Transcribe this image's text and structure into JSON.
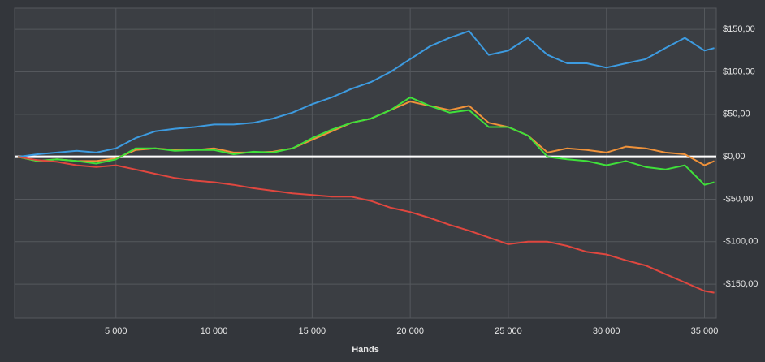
{
  "chart_data": {
    "type": "line",
    "x_label": "Hands",
    "x": [
      0,
      1000,
      2000,
      3000,
      4000,
      5000,
      6000,
      7000,
      8000,
      9000,
      10000,
      11000,
      12000,
      13000,
      14000,
      15000,
      16000,
      17000,
      18000,
      19000,
      20000,
      21000,
      22000,
      23000,
      24000,
      25000,
      26000,
      27000,
      28000,
      29000,
      30000,
      31000,
      32000,
      33000,
      34000,
      35000,
      35500
    ],
    "series": [
      {
        "color": "#3d9be0",
        "values": [
          0,
          3,
          5,
          7,
          5,
          10,
          22,
          30,
          33,
          35,
          38,
          38,
          40,
          45,
          52,
          62,
          70,
          80,
          88,
          100,
          115,
          130,
          140,
          148,
          120,
          125,
          140,
          120,
          110,
          110,
          105,
          110,
          115,
          128,
          140,
          125,
          128
        ]
      },
      {
        "color": "#f0923a",
        "values": [
          0,
          -5,
          -3,
          -5,
          -5,
          -2,
          8,
          10,
          8,
          8,
          10,
          5,
          5,
          6,
          10,
          20,
          30,
          40,
          45,
          55,
          65,
          60,
          55,
          60,
          40,
          35,
          25,
          5,
          10,
          8,
          5,
          12,
          10,
          5,
          3,
          -10,
          -5
        ]
      },
      {
        "color": "#3fe03a",
        "values": [
          0,
          -5,
          -3,
          -5,
          -8,
          -3,
          10,
          10,
          7,
          8,
          8,
          3,
          6,
          5,
          10,
          22,
          32,
          40,
          45,
          55,
          70,
          60,
          52,
          55,
          35,
          35,
          25,
          0,
          -3,
          -5,
          -10,
          -5,
          -12,
          -15,
          -10,
          -33,
          -30
        ]
      },
      {
        "color": "#e0473f",
        "values": [
          0,
          -4,
          -6,
          -10,
          -12,
          -10,
          -15,
          -20,
          -25,
          -28,
          -30,
          -33,
          -37,
          -40,
          -43,
          -45,
          -47,
          -47,
          -52,
          -60,
          -65,
          -72,
          -80,
          -87,
          -95,
          -103,
          -100,
          -100,
          -105,
          -112,
          -115,
          -122,
          -128,
          -138,
          -148,
          -158,
          -160
        ]
      }
    ],
    "xlim": [
      0,
      35600
    ],
    "xticks": [
      {
        "value": 5000,
        "label": "5 000"
      },
      {
        "value": 10000,
        "label": "10 000"
      },
      {
        "value": 15000,
        "label": "15 000"
      },
      {
        "value": 20000,
        "label": "20 000"
      },
      {
        "value": 25000,
        "label": "25 000"
      },
      {
        "value": 30000,
        "label": "30 000"
      },
      {
        "value": 35000,
        "label": "35 000"
      }
    ],
    "ylim": [
      -190,
      175
    ],
    "yticks": [
      {
        "value": -150,
        "label": "-$150,00"
      },
      {
        "value": -100,
        "label": "-$100,00"
      },
      {
        "value": -50,
        "label": "-$50,00"
      },
      {
        "value": 0,
        "label": "$0,00"
      },
      {
        "value": 50,
        "label": "$50,00"
      },
      {
        "value": 100,
        "label": "$100,00"
      },
      {
        "value": 150,
        "label": "$150,00"
      }
    ],
    "grid": true
  }
}
